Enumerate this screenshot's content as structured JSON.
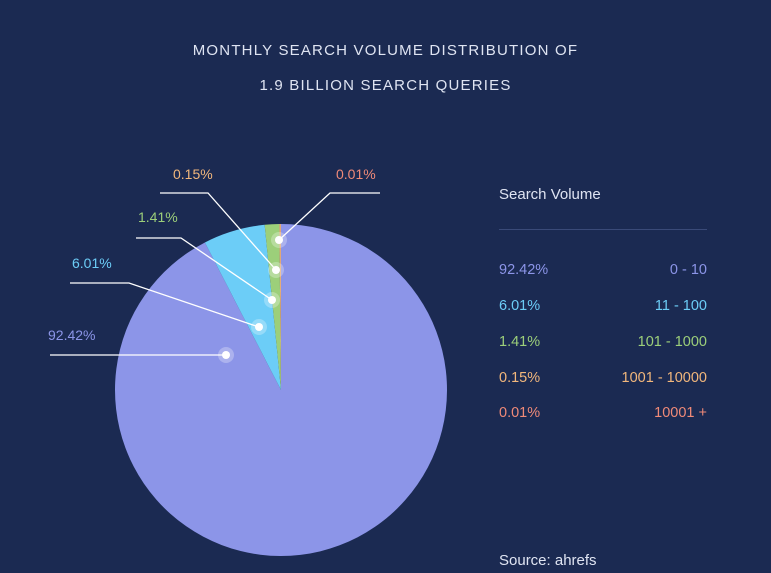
{
  "title_line1": "MONTHLY SEARCH VOLUME DISTRIBUTION OF",
  "title_line2": "1.9 BILLION SEARCH QUERIES",
  "legend_title": "Search Volume",
  "source": "Source: ahrefs",
  "chart_data": {
    "type": "pie",
    "title": "MONTHLY SEARCH VOLUME DISTRIBUTION OF 1.9 BILLION SEARCH QUERIES",
    "legend_placement": "right",
    "slices": [
      {
        "label": "92.42%",
        "value": 92.42,
        "range": "0 - 10",
        "color": "#8c95e8"
      },
      {
        "label": "6.01%",
        "value": 6.01,
        "range": "11 - 100",
        "color": "#6ccdf7"
      },
      {
        "label": "1.41%",
        "value": 1.41,
        "range": "101 - 1000",
        "color": "#9ccf7a"
      },
      {
        "label": "0.15%",
        "value": 0.15,
        "range": "1001 - 10000",
        "color": "#f2b77c"
      },
      {
        "label": "0.01%",
        "value": 0.01,
        "range": "10001 +",
        "color": "#f08a78"
      }
    ]
  }
}
